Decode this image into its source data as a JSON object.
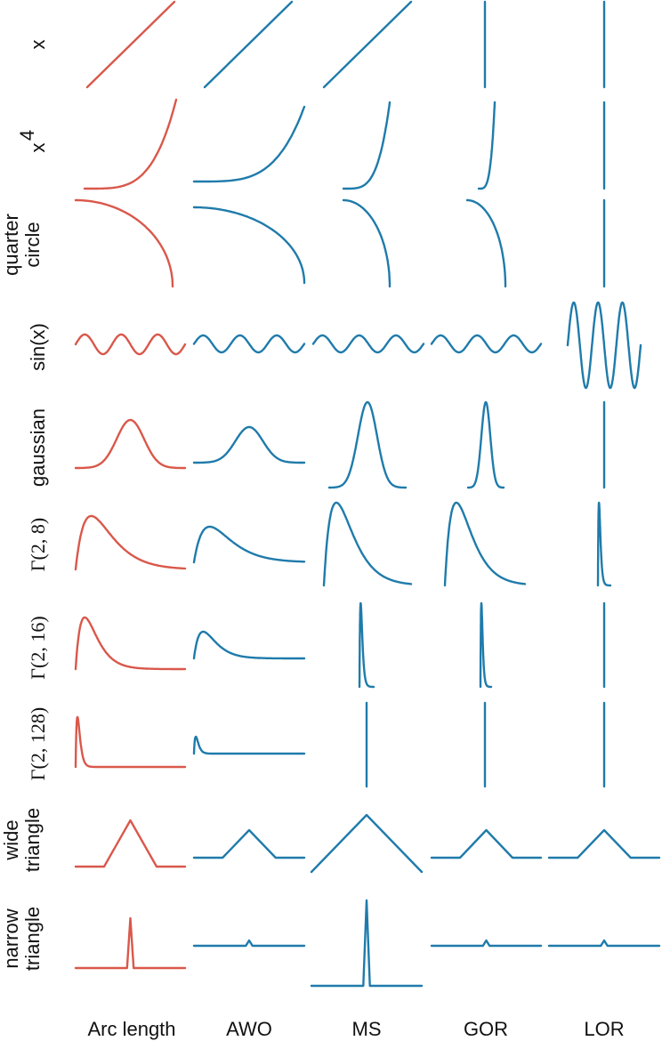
{
  "figure": {
    "columns": [
      "Arc length",
      "AWO",
      "MS",
      "GOR",
      "LOR"
    ],
    "rows": [
      {
        "label_lines": [
          "x"
        ]
      },
      {
        "label_lines": [
          "x"
        ],
        "superscript": "4"
      },
      {
        "label_lines": [
          "quarter",
          "circle"
        ]
      },
      {
        "label_lines": [
          "sin(x)"
        ]
      },
      {
        "label_lines": [
          "gaussian"
        ]
      },
      {
        "label_lines": [
          "Γ(2, 8)"
        ]
      },
      {
        "label_lines": [
          "Γ(2, 16)"
        ]
      },
      {
        "label_lines": [
          "Γ(2, 128)"
        ]
      },
      {
        "label_lines": [
          "wide",
          "triangle"
        ]
      },
      {
        "label_lines": [
          "narrow",
          "triangle"
        ]
      }
    ]
  },
  "colors": {
    "arc_length": "#d9584b",
    "optimized": "#1f7bab",
    "text": "#111111",
    "background": "#ffffff"
  }
}
